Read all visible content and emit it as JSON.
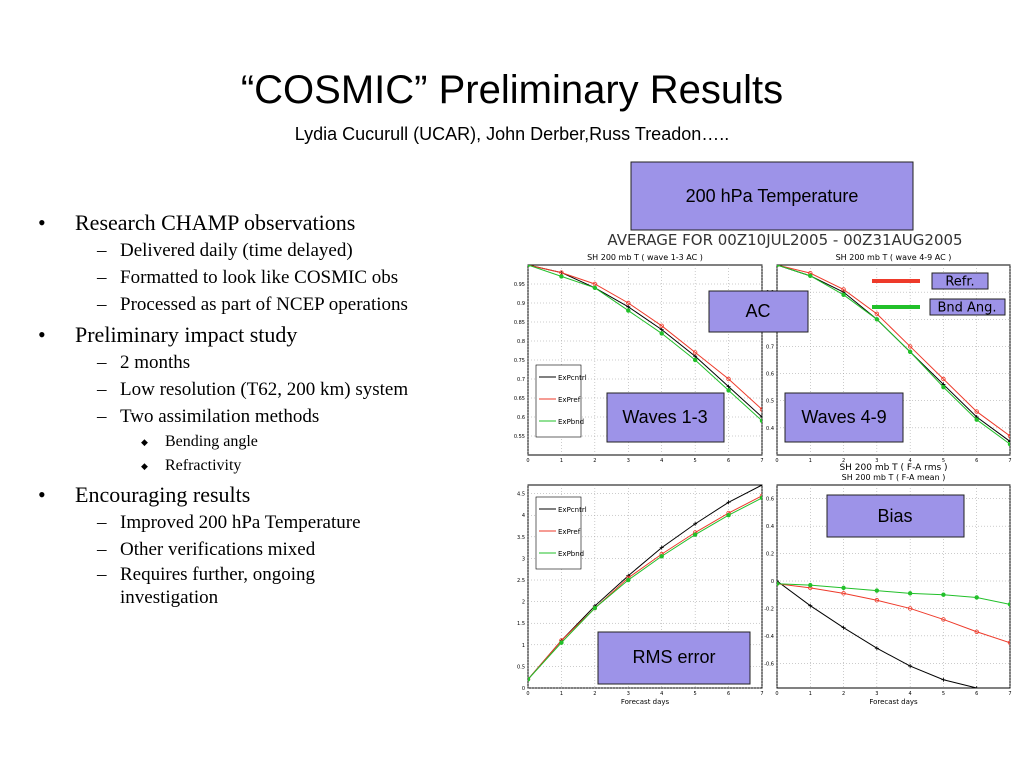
{
  "slide": {
    "title": "“COSMIC” Preliminary Results",
    "subtitle": "Lydia Cucurull (UCAR), John Derber,Russ Treadon…..",
    "bullets": [
      {
        "level": 1,
        "text": "Research CHAMP observations"
      },
      {
        "level": 2,
        "text": "Delivered daily (time delayed)"
      },
      {
        "level": 2,
        "text": "Formatted to look like COSMIC obs"
      },
      {
        "level": 2,
        "text": "Processed as part of NCEP operations"
      },
      {
        "level": 1,
        "text": "Preliminary impact study"
      },
      {
        "level": 2,
        "text": "2 months"
      },
      {
        "level": 2,
        "text": "Low resolution (T62, 200 km) system"
      },
      {
        "level": 2,
        "text": "Two assimilation methods"
      },
      {
        "level": 3,
        "text": "Bending angle"
      },
      {
        "level": 3,
        "text": "Refractivity"
      },
      {
        "level": 1,
        "text": "Encouraging results"
      },
      {
        "level": 2,
        "text": "Improved 200 hPa Temperature"
      },
      {
        "level": 2,
        "text": "Other verifications mixed"
      },
      {
        "level": 2,
        "text": "Requires further, ongoing investigation"
      }
    ]
  },
  "figure": {
    "header": "AVERAGE FOR 00Z10JUL2005 - 00Z31AUG2005",
    "callouts": {
      "main": "200 hPa Temperature",
      "ac": "AC",
      "waves13": "Waves 1-3",
      "waves49": "Waves 4-9",
      "bias": "Bias",
      "rms": "RMS error"
    },
    "legend": [
      {
        "name": "Refr.",
        "color": "#ee3a2a"
      },
      {
        "name": "Bnd Ang.",
        "color": "#22c02a"
      }
    ]
  },
  "chart_data": [
    {
      "type": "line",
      "title": "SH 200 mb T ( wave 1-3 AC )",
      "x": [
        0,
        1,
        2,
        3,
        4,
        5,
        6,
        7
      ],
      "xlim": [
        0,
        7
      ],
      "xticks": [
        0,
        1,
        2,
        3,
        4,
        5,
        6,
        7
      ],
      "ylim": [
        0.5,
        1.0
      ],
      "yticks": [
        0.55,
        0.6,
        0.65,
        0.7,
        0.75,
        0.8,
        0.85,
        0.9,
        0.95
      ],
      "legend": true,
      "series": [
        {
          "name": "ExPcntrl",
          "color": "#000000",
          "values": [
            1.0,
            0.98,
            0.94,
            0.89,
            0.83,
            0.76,
            0.68,
            0.6
          ]
        },
        {
          "name": "ExPref",
          "color": "#ee3a2a",
          "values": [
            1.0,
            0.98,
            0.95,
            0.9,
            0.84,
            0.77,
            0.7,
            0.62
          ]
        },
        {
          "name": "ExPbnd",
          "color": "#22c02a",
          "values": [
            1.0,
            0.97,
            0.94,
            0.88,
            0.82,
            0.75,
            0.67,
            0.59
          ]
        }
      ]
    },
    {
      "type": "line",
      "title": "SH 200 mb T ( wave 4-9 AC )",
      "xlabel": "SH 200 mb T ( F-A rms )",
      "x": [
        0,
        1,
        2,
        3,
        4,
        5,
        6,
        7
      ],
      "xlim": [
        0,
        7
      ],
      "xticks": [
        0,
        1,
        2,
        3,
        4,
        5,
        6,
        7
      ],
      "ylim": [
        0.3,
        1.0
      ],
      "yticks": [
        0.4,
        0.5,
        0.6,
        0.7,
        0.8,
        0.9
      ],
      "legend": false,
      "series": [
        {
          "name": "ExPcntrl",
          "color": "#000000",
          "values": [
            1.0,
            0.96,
            0.9,
            0.8,
            0.68,
            0.56,
            0.44,
            0.35
          ]
        },
        {
          "name": "ExPref",
          "color": "#ee3a2a",
          "values": [
            1.0,
            0.97,
            0.91,
            0.82,
            0.7,
            0.58,
            0.46,
            0.37
          ]
        },
        {
          "name": "ExPbnd",
          "color": "#22c02a",
          "values": [
            1.0,
            0.96,
            0.89,
            0.8,
            0.68,
            0.55,
            0.43,
            0.34
          ]
        }
      ]
    },
    {
      "type": "line",
      "xlabel": "Forecast days",
      "x": [
        0,
        1,
        2,
        3,
        4,
        5,
        6,
        7
      ],
      "xlim": [
        0,
        7
      ],
      "xticks": [
        0,
        1,
        2,
        3,
        4,
        5,
        6,
        7
      ],
      "ylim": [
        0,
        4.7
      ],
      "yticks": [
        0,
        0.5,
        1,
        1.5,
        2,
        2.5,
        3,
        3.5,
        4,
        4.5
      ],
      "legend": true,
      "series": [
        {
          "name": "ExPcntrl",
          "color": "#000000",
          "values": [
            0.2,
            1.1,
            1.9,
            2.6,
            3.25,
            3.8,
            4.3,
            4.7
          ]
        },
        {
          "name": "ExPref",
          "color": "#ee3a2a",
          "values": [
            0.2,
            1.1,
            1.85,
            2.55,
            3.1,
            3.6,
            4.05,
            4.45
          ]
        },
        {
          "name": "ExPbnd",
          "color": "#22c02a",
          "values": [
            0.2,
            1.05,
            1.85,
            2.5,
            3.05,
            3.55,
            4.0,
            4.4
          ]
        }
      ]
    },
    {
      "type": "line",
      "title": "SH 200 mb T ( F-A mean )",
      "xlabel": "Forecast days",
      "x": [
        0,
        1,
        2,
        3,
        4,
        5,
        6,
        7
      ],
      "xlim": [
        0,
        7
      ],
      "xticks": [
        0,
        1,
        2,
        3,
        4,
        5,
        6,
        7
      ],
      "ylim": [
        -0.78,
        0.7
      ],
      "yticks": [
        -0.6,
        -0.4,
        -0.2,
        0,
        0.2,
        0.4,
        0.6
      ],
      "legend": false,
      "series": [
        {
          "name": "ExPcntrl",
          "color": "#000000",
          "values": [
            0,
            -0.18,
            -0.34,
            -0.49,
            -0.62,
            -0.72,
            -0.78,
            null
          ]
        },
        {
          "name": "ExPref",
          "color": "#ee3a2a",
          "values": [
            -0.02,
            -0.05,
            -0.09,
            -0.14,
            -0.2,
            -0.28,
            -0.37,
            -0.45
          ]
        },
        {
          "name": "ExPbnd",
          "color": "#22c02a",
          "values": [
            -0.02,
            -0.03,
            -0.05,
            -0.07,
            -0.09,
            -0.1,
            -0.12,
            -0.17
          ]
        }
      ]
    }
  ]
}
